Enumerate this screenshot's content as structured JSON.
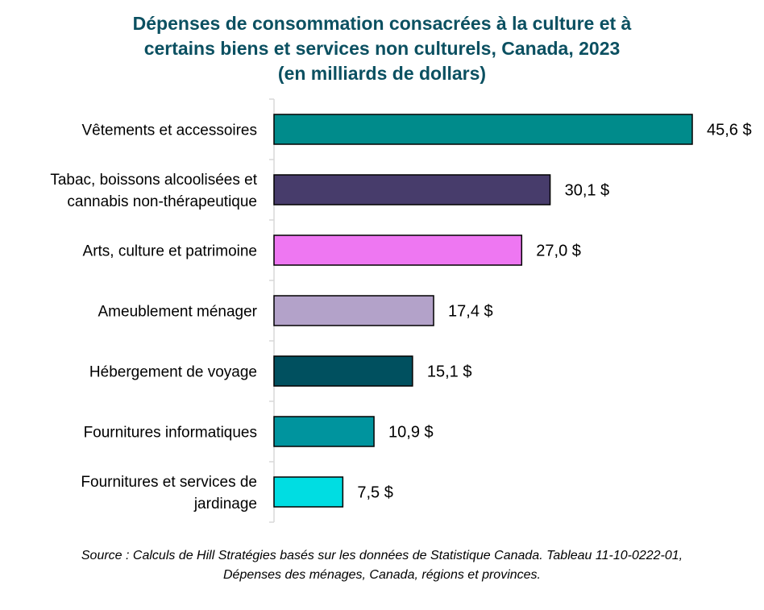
{
  "chart_data": {
    "type": "bar",
    "orientation": "horizontal",
    "title_lines": [
      "Dépenses de consommation consacrées à la culture et à",
      "certains biens et services non culturels, Canada, 2023",
      "(en milliards de dollars)"
    ],
    "categories": [
      [
        "Vêtements et accessoires"
      ],
      [
        "Tabac, boissons alcoolisées et",
        "cannabis non-thérapeutique"
      ],
      [
        "Arts, culture et patrimoine"
      ],
      [
        "Ameublement ménager"
      ],
      [
        "Hébergement de voyage"
      ],
      [
        "Fournitures informatiques"
      ],
      [
        "Fournitures et services de",
        "jardinage"
      ]
    ],
    "values": [
      45.6,
      30.1,
      27.0,
      17.4,
      15.1,
      10.9,
      7.5
    ],
    "value_labels": [
      "45,6 $",
      "30,1 $",
      "27,0 $",
      "17,4 $",
      "15,1 $",
      "10,9 $",
      "7,5 $"
    ],
    "colors": [
      "#008b8b",
      "#473c6b",
      "#ee77f2",
      "#b3a2c9",
      "#00505f",
      "#00949e",
      "#00dde2"
    ],
    "xlim": [
      0,
      47
    ],
    "grid": false,
    "legend": "none",
    "source_lines": [
      "Source : Calculs de Hill Stratégies basés sur les données de Statistique Canada. Tableau 11-10-0222-01,",
      "Dépenses des ménages, Canada, régions et provinces."
    ]
  }
}
